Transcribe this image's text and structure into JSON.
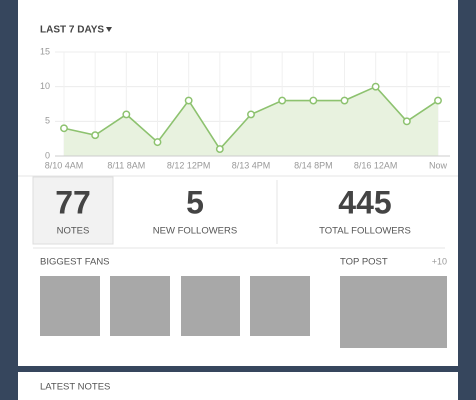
{
  "header": {
    "title": "LAST 7 DAYS"
  },
  "chart_data": {
    "type": "line",
    "categories": [
      "8/10 4AM",
      null,
      "8/11 8AM",
      null,
      "8/12 12PM",
      null,
      "8/13 4PM",
      null,
      "8/14 8PM",
      null,
      "8/16 12AM",
      null,
      "Now"
    ],
    "values": [
      4,
      3,
      6,
      2,
      8,
      1,
      6,
      8,
      8,
      8,
      10,
      5,
      8
    ],
    "color": "#8dc26f",
    "area_color": "#e8f2df",
    "ylim": [
      0,
      15
    ],
    "yticks": [
      0,
      5,
      10,
      15
    ],
    "grid": true
  },
  "stats": [
    {
      "value": 77,
      "label": "NOTES"
    },
    {
      "value": 5,
      "label": "NEW FOLLOWERS"
    },
    {
      "value": 445,
      "label": "TOTAL FOLLOWERS"
    }
  ],
  "fans": {
    "title": "BIGGEST FANS"
  },
  "top_post": {
    "title": "TOP POST",
    "count": "+10"
  },
  "latest_notes": {
    "title": "LATEST NOTES"
  }
}
